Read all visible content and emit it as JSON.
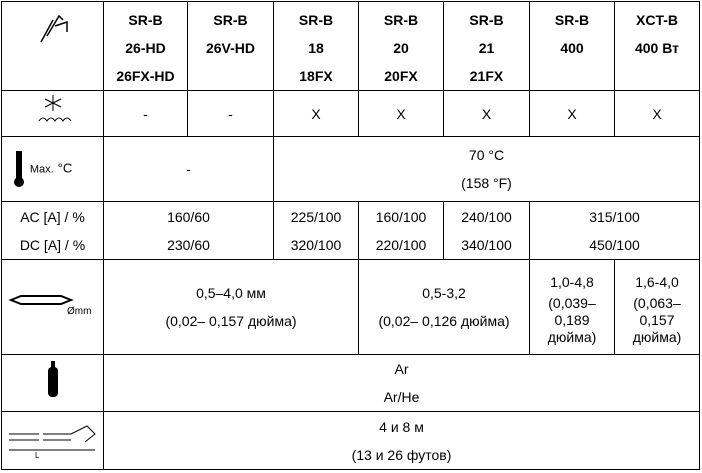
{
  "header": {
    "columns": [
      [
        "SR-B",
        "26-HD",
        "26FX-HD"
      ],
      [
        "SR-B",
        "26V-HD"
      ],
      [
        "SR-B",
        "18",
        "18FX"
      ],
      [
        "SR-B",
        "20",
        "20FX"
      ],
      [
        "SR-B",
        "21",
        "21FX"
      ],
      [
        "SR-B",
        "400"
      ],
      [
        "XCT-B",
        "400 Вт"
      ]
    ]
  },
  "cooling": [
    "-",
    "-",
    "X",
    "X",
    "X",
    "X",
    "X"
  ],
  "temperature": {
    "icon_label": "Max.",
    "icon_unit": "°C",
    "cells": [
      [
        "-"
      ],
      [
        "70 °C",
        "(158 °F)"
      ]
    ]
  },
  "current": {
    "labels": [
      "AC [A] / %",
      "DC [A] / %"
    ],
    "cells": [
      [
        "160/60",
        "230/60"
      ],
      [
        "225/100",
        "320/100"
      ],
      [
        "160/100",
        "220/100"
      ],
      [
        "240/100",
        "340/100"
      ],
      [
        "315/100",
        "450/100"
      ]
    ]
  },
  "electrode": {
    "icon_label": "Ømm",
    "cells": [
      [
        "0,5–4,0 мм",
        "(0,02– 0,157 дюйма)"
      ],
      [
        "0,5-3,2",
        "(0,02– 0,126 дюйма)"
      ],
      [
        "1,0-4,8",
        "(0,039–",
        "0,189",
        "дюйма)"
      ],
      [
        "1,6-4,0",
        "(0,063–",
        "0,157",
        "дюйма)"
      ]
    ]
  },
  "gas": [
    "Ar",
    "Ar/He"
  ],
  "cable": {
    "icon_label": "L",
    "cells": [
      "4 и 8 м",
      "(13 и 26 футов)"
    ]
  }
}
